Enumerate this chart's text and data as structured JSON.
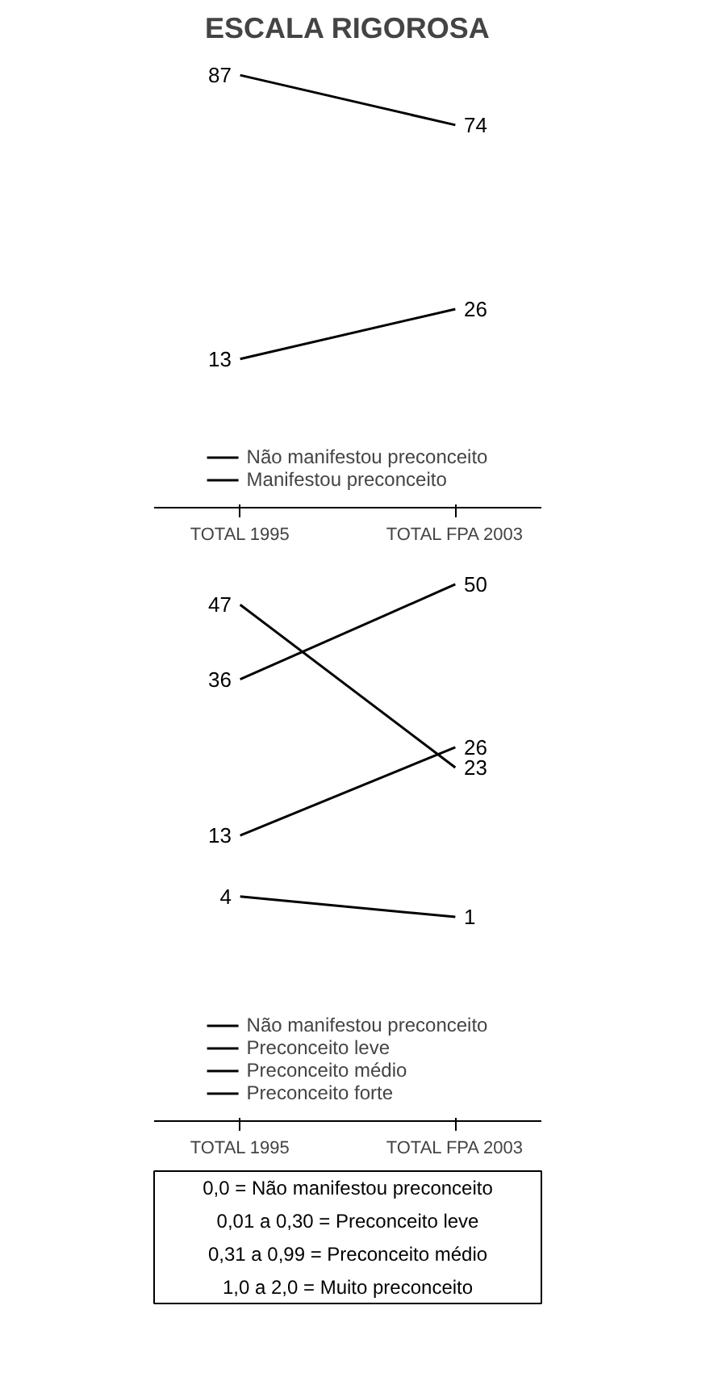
{
  "chart_data": [
    {
      "type": "line",
      "title": "ESCALA RIGOROSA",
      "categories": [
        "TOTAL 1995",
        "TOTAL FPA 2003"
      ],
      "data_labels": true,
      "legend": "bottom",
      "grid": false,
      "series": [
        {
          "name": "Não manifestou preconceito",
          "color": "#000000",
          "values": [
            87,
            74
          ]
        },
        {
          "name": "Manifestou preconceito",
          "color": "#000000",
          "values": [
            13,
            26
          ]
        }
      ]
    },
    {
      "type": "line",
      "categories": [
        "TOTAL 1995",
        "TOTAL FPA 2003"
      ],
      "data_labels": true,
      "legend": "bottom",
      "grid": false,
      "annotations": [
        "0,0 = Não manifestou preconceito",
        "0,01 a 0,30 = Preconceito leve",
        "0,31 a 0,99 = Preconceito médio",
        "1,0 a 2,0 = Muito preconceito"
      ],
      "series": [
        {
          "name": "Não manifestou preconceito",
          "color": "#000000",
          "values": [
            47,
            23
          ]
        },
        {
          "name": "Preconceito leve",
          "color": "#000000",
          "values": [
            36,
            50
          ]
        },
        {
          "name": "Preconceito médio",
          "color": "#000000",
          "values": [
            13,
            26
          ]
        },
        {
          "name": "Preconceito forte",
          "color": "#000000",
          "values": [
            4,
            1
          ]
        }
      ]
    }
  ]
}
